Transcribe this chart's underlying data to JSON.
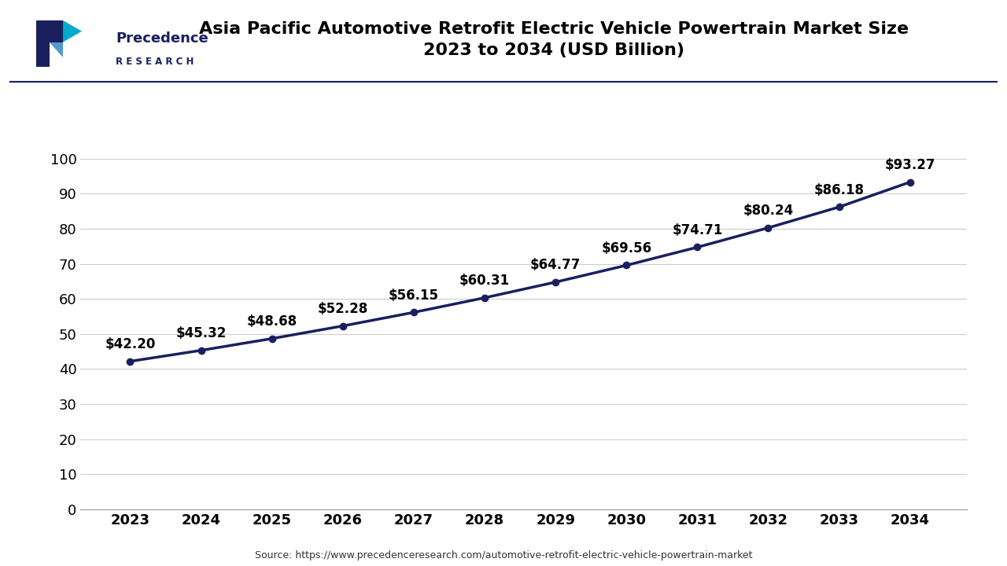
{
  "title": "Asia Pacific Automotive Retrofit Electric Vehicle Powertrain Market Size\n2023 to 2034 (USD Billion)",
  "years": [
    2023,
    2024,
    2025,
    2026,
    2027,
    2028,
    2029,
    2030,
    2031,
    2032,
    2033,
    2034
  ],
  "values": [
    42.2,
    45.32,
    48.68,
    52.28,
    56.15,
    60.31,
    64.77,
    69.56,
    74.71,
    80.24,
    86.18,
    93.27
  ],
  "labels": [
    "$42.20",
    "$45.32",
    "$48.68",
    "$52.28",
    "$56.15",
    "$60.31",
    "$64.77",
    "$69.56",
    "$74.71",
    "$80.24",
    "$86.18",
    "$93.27"
  ],
  "line_color": "#1a1f5e",
  "marker_color": "#1a1f5e",
  "ylim": [
    0,
    100
  ],
  "yticks": [
    0,
    10,
    20,
    30,
    40,
    50,
    60,
    70,
    80,
    90,
    100
  ],
  "grid_color": "#cccccc",
  "background_color": "#ffffff",
  "title_fontsize": 16,
  "tick_fontsize": 13,
  "label_fontsize": 12,
  "source_text": "Source: https://www.precedenceresearch.com/automotive-retrofit-electric-vehicle-powertrain-market",
  "logo_text_line1": "Precedence",
  "logo_text_line2": "R E S E A R C H",
  "separator_color": "#1a1f5e",
  "logo_color": "#1a1f5e",
  "logo_teal": "#00aacc",
  "logo_light_blue": "#5599cc"
}
